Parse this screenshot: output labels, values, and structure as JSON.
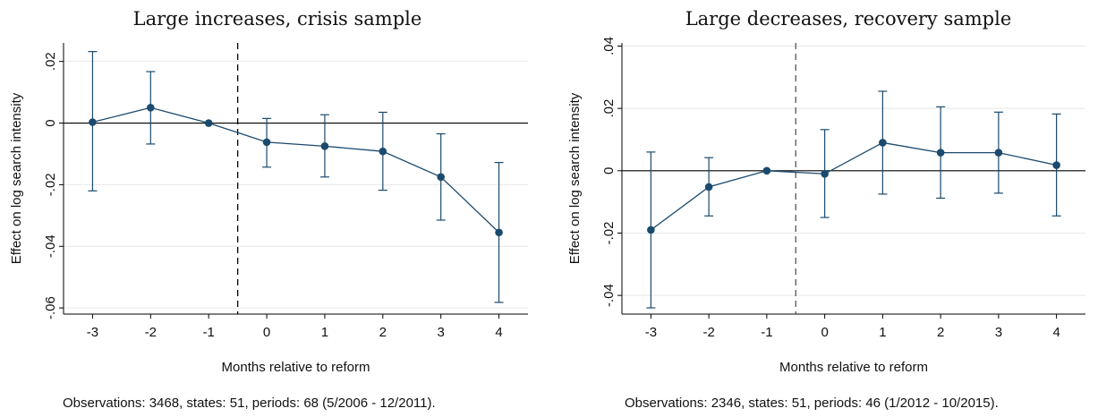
{
  "chart_data": [
    {
      "type": "line",
      "title": "Large increases, crisis sample",
      "xlabel": "Months relative to reform",
      "ylabel": "Effect on log search intensity",
      "note": "Observations: 3468, states: 51, periods: 68 (5/2006 - 12/2011).",
      "x": [
        -3,
        -2,
        -1,
        0,
        1,
        2,
        3,
        4
      ],
      "x_tick_labels": [
        "-3",
        "-2",
        "-1",
        "0",
        "1",
        "2",
        "3",
        "4"
      ],
      "y": [
        0.0003,
        0.005,
        0.0,
        -0.0062,
        -0.0075,
        -0.0092,
        -0.0175,
        -0.0355
      ],
      "ci_low": [
        -0.022,
        -0.0068,
        0.0,
        -0.0143,
        -0.0175,
        -0.0218,
        -0.0315,
        -0.0582
      ],
      "ci_high": [
        0.0232,
        0.0167,
        0.0,
        0.0015,
        0.0027,
        0.0035,
        -0.0035,
        -0.0128
      ],
      "ylim": [
        -0.062,
        0.026
      ],
      "y_ticks": [
        0.02,
        0.0,
        -0.02,
        -0.04,
        -0.06
      ],
      "y_tick_labels": [
        ".02",
        "0",
        "-.02",
        "-.04",
        "-.06"
      ],
      "xlim": [
        -3.5,
        4.5
      ],
      "reform_line_x": -0.5,
      "grid": true,
      "colors": {
        "series": "#1a4a6e",
        "grid": "#e8e8e8",
        "reference": "#000000"
      }
    },
    {
      "type": "line",
      "title": "Large decreases, recovery sample",
      "xlabel": "Months relative to reform",
      "ylabel": "Effect on log search intensity",
      "note": "Observations: 2346, states: 51, periods: 46 (1/2012 - 10/2015).",
      "x": [
        -3,
        -2,
        -1,
        0,
        1,
        2,
        3,
        4
      ],
      "x_tick_labels": [
        "-3",
        "-2",
        "-1",
        "0",
        "1",
        "2",
        "3",
        "4"
      ],
      "y": [
        -0.019,
        -0.0052,
        0.0,
        -0.001,
        0.009,
        0.0058,
        0.0058,
        0.0018
      ],
      "ci_low": [
        -0.044,
        -0.0145,
        0.0,
        -0.015,
        -0.0075,
        -0.0088,
        -0.0072,
        -0.0145
      ],
      "ci_high": [
        0.006,
        0.0042,
        0.0,
        0.0132,
        0.0255,
        0.0205,
        0.0188,
        0.0182
      ],
      "ylim": [
        -0.046,
        0.041
      ],
      "y_ticks": [
        0.04,
        0.02,
        0.0,
        -0.02,
        -0.04
      ],
      "y_tick_labels": [
        ".04",
        ".02",
        "0",
        "-.02",
        "-.04"
      ],
      "xlim": [
        -3.5,
        4.5
      ],
      "reform_line_x": -0.5,
      "grid": true,
      "colors": {
        "series": "#1a4a6e",
        "grid": "#e8e8e8",
        "reference": "#555555"
      }
    }
  ]
}
